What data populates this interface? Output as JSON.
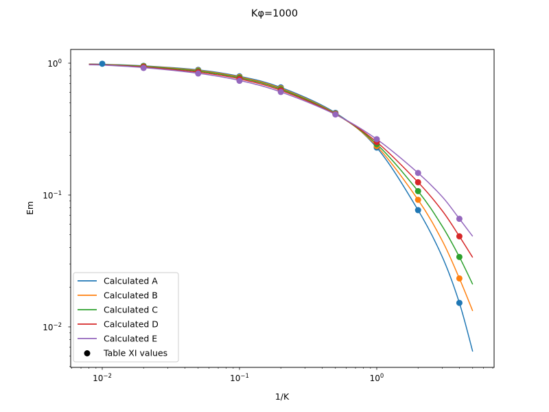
{
  "figure": {
    "title": "Kφ=1000",
    "xlabel": "1/K",
    "ylabel": "Em"
  },
  "axes": {
    "x_ticks": [
      {
        "base": "10",
        "exp": "−2",
        "value": 0.01
      },
      {
        "base": "10",
        "exp": "−1",
        "value": 0.1
      },
      {
        "base": "10",
        "exp": "0",
        "value": 1
      }
    ],
    "y_ticks": [
      {
        "base": "10",
        "exp": "0",
        "value": 1
      },
      {
        "base": "10",
        "exp": "−1",
        "value": 0.1
      },
      {
        "base": "10",
        "exp": "−2",
        "value": 0.01
      }
    ]
  },
  "legend": {
    "items": [
      {
        "label": "Calculated A",
        "color": "#1f77b4",
        "kind": "line"
      },
      {
        "label": "Calculated B",
        "color": "#ff7f0e",
        "kind": "line"
      },
      {
        "label": "Calculated C",
        "color": "#2ca02c",
        "kind": "line"
      },
      {
        "label": "Calculated D",
        "color": "#d62728",
        "kind": "line"
      },
      {
        "label": "Calculated E",
        "color": "#9467bd",
        "kind": "line"
      },
      {
        "label": "Table XI values",
        "color": "#000000",
        "kind": "marker"
      }
    ]
  },
  "chart_data": {
    "type": "line",
    "title": "Kφ=1000",
    "xlabel": "1/K",
    "ylabel": "Em",
    "xscale": "log",
    "yscale": "log",
    "xlim": [
      0.0063,
      6.5
    ],
    "ylim": [
      0.0053,
      1.27
    ],
    "grid": false,
    "legend_position": "lower left",
    "x": [
      0.008,
      0.01,
      0.02,
      0.05,
      0.1,
      0.2,
      0.5,
      1,
      2,
      3,
      4,
      5
    ],
    "series": [
      {
        "name": "Calculated A",
        "color": "#1f77b4",
        "values": [
          0.985,
          0.98,
          0.955,
          0.89,
          0.795,
          0.655,
          0.42,
          0.229,
          0.0768,
          0.034,
          0.0152,
          0.0065
        ]
      },
      {
        "name": "Calculated B",
        "color": "#ff7f0e",
        "values": [
          0.983,
          0.978,
          0.95,
          0.88,
          0.785,
          0.645,
          0.415,
          0.235,
          0.092,
          0.045,
          0.0233,
          0.0132
        ]
      },
      {
        "name": "Calculated C",
        "color": "#2ca02c",
        "values": [
          0.981,
          0.976,
          0.945,
          0.87,
          0.775,
          0.635,
          0.412,
          0.243,
          0.107,
          0.058,
          0.0339,
          0.021
        ]
      },
      {
        "name": "Calculated D",
        "color": "#d62728",
        "values": [
          0.978,
          0.973,
          0.935,
          0.855,
          0.76,
          0.622,
          0.41,
          0.252,
          0.125,
          0.076,
          0.0486,
          0.0336
        ]
      },
      {
        "name": "Calculated E",
        "color": "#9467bd",
        "values": [
          0.972,
          0.967,
          0.925,
          0.838,
          0.74,
          0.605,
          0.408,
          0.265,
          0.147,
          0.097,
          0.066,
          0.0486
        ]
      }
    ],
    "table_points": {
      "name": "Table XI values",
      "x": [
        0.01,
        0.02,
        0.05,
        0.1,
        0.2,
        0.5,
        1,
        2,
        4
      ],
      "A": [
        0.99,
        0.955,
        0.89,
        0.795,
        0.655,
        0.42,
        0.229,
        0.0768,
        0.0152
      ],
      "B": [
        null,
        0.95,
        0.88,
        0.785,
        0.645,
        0.415,
        0.235,
        0.092,
        0.0233
      ],
      "C": [
        null,
        0.945,
        0.87,
        0.775,
        0.635,
        0.412,
        0.243,
        0.107,
        0.0339
      ],
      "D": [
        null,
        0.935,
        0.855,
        0.76,
        0.622,
        0.41,
        0.252,
        0.125,
        0.0486
      ],
      "E": [
        null,
        0.92,
        0.835,
        0.735,
        0.605,
        0.408,
        0.265,
        0.147,
        0.066
      ]
    }
  }
}
